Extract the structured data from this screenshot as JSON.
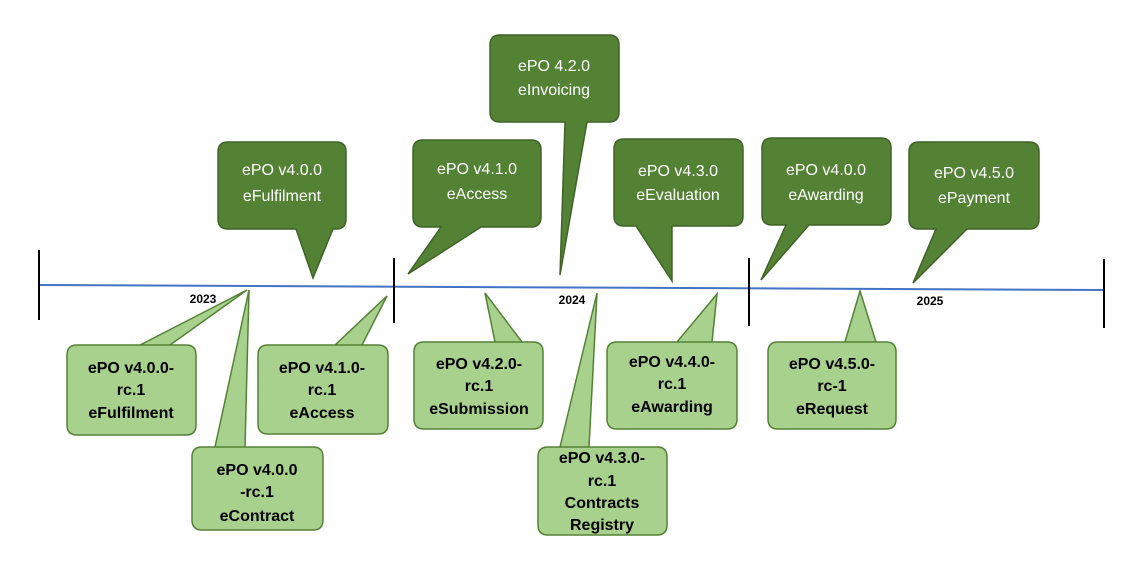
{
  "years": [
    "2023",
    "2024",
    "2025"
  ],
  "colors": {
    "dark_fill": "#548235",
    "dark_stroke": "#3f6327",
    "light_fill": "#a9d18e",
    "light_stroke": "#548235",
    "timeline": "#4472c4",
    "tick": "#000000"
  },
  "releases": [
    {
      "line1": "ePO v4.0.0",
      "line2": "eFulfilment"
    },
    {
      "line1": "ePO v4.1.0",
      "line2": "eAccess"
    },
    {
      "line1": "ePO 4.2.0",
      "line2": "eInvoicing"
    },
    {
      "line1": "ePO v4.3.0",
      "line2": "eEvaluation"
    },
    {
      "line1": "ePO v4.0.0",
      "line2": "eAwarding"
    },
    {
      "line1": "ePO v4.5.0",
      "line2": "ePayment"
    }
  ],
  "release_candidates": [
    {
      "line1": "ePO v4.0.0-",
      "line2": "rc.1",
      "line3": "eFulfilment"
    },
    {
      "line1": "ePO v4.0.0",
      "line2": "-rc.1",
      "line3": "eContract"
    },
    {
      "line1": "ePO v4.1.0-",
      "line2": "rc.1",
      "line3": "eAccess"
    },
    {
      "line1": "ePO v4.2.0-",
      "line2": "rc.1",
      "line3": "eSubmission"
    },
    {
      "line1": "ePO v4.3.0-",
      "line2": "rc.1",
      "line3": "Contracts",
      "line4": "Registry"
    },
    {
      "line1": "ePO v4.4.0-",
      "line2": "rc.1",
      "line3": "eAwarding"
    },
    {
      "line1": "ePO v4.5.0-",
      "line2": "rc-1",
      "line3": "eRequest"
    }
  ]
}
